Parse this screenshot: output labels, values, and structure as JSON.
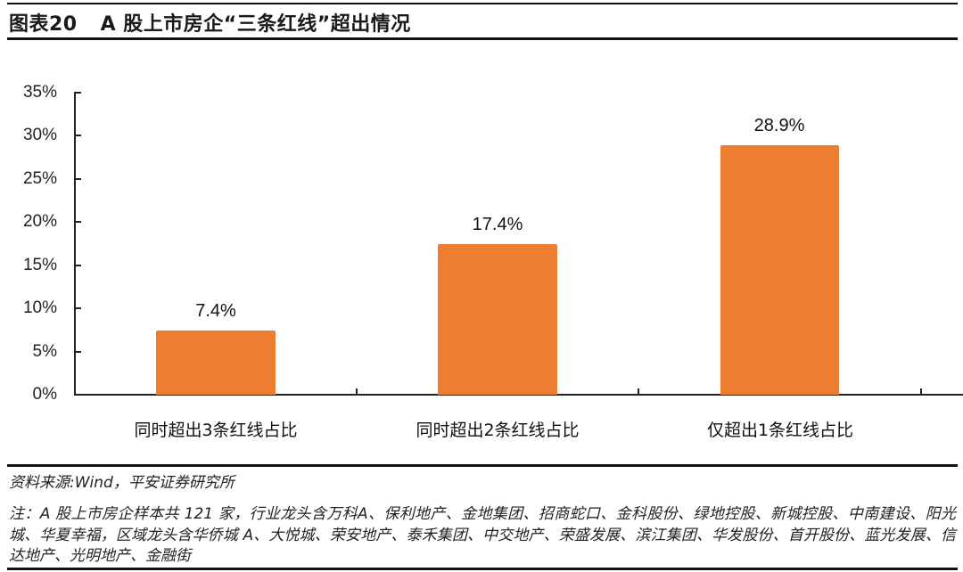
{
  "header": {
    "figure_number": "图表20",
    "title": "A 股上市房企“三条红线”超出情况"
  },
  "chart_data": {
    "type": "bar",
    "title": "A 股上市房企“三条红线”超出情况",
    "categories": [
      "同时超出3条红线占比",
      "同时超出2条红线占比",
      "仅超出1条红线占比"
    ],
    "values": [
      7.4,
      17.4,
      28.9
    ],
    "value_labels": [
      "7.4%",
      "17.4%",
      "28.9%"
    ],
    "unit": "%",
    "xlabel": "",
    "ylabel": "",
    "ylim": [
      0,
      35
    ],
    "yticks": [
      "0%",
      "5%",
      "10%",
      "15%",
      "20%",
      "25%",
      "30%",
      "35%"
    ],
    "grid": false,
    "legend": null,
    "bar_color": "#ED7D31"
  },
  "footer": {
    "source": "资料来源:Wind，平安证券研究所",
    "note": "注：A 股上市房企样本共 121 家，行业龙头含万科A、保利地产、金地集团、招商蛇口、金科股份、绿地控股、新城控股、中南建设、阳光城、华夏幸福，区域龙头含华侨城 A、大悦城、荣安地产、泰禾集团、中交地产、荣盛发展、滨江集团、华发股份、首开股份、蓝光发展、信达地产、光明地产、金融街"
  }
}
